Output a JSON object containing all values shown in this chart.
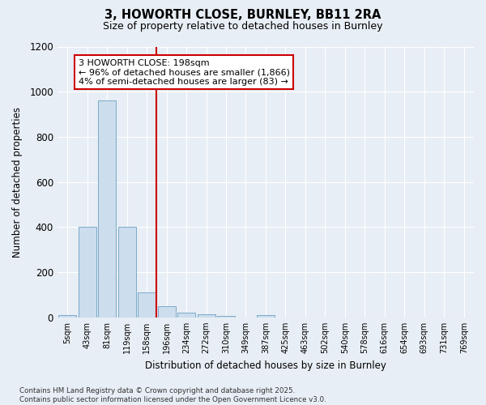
{
  "title_line1": "3, HOWORTH CLOSE, BURNLEY, BB11 2RA",
  "title_line2": "Size of property relative to detached houses in Burnley",
  "xlabel": "Distribution of detached houses by size in Burnley",
  "ylabel": "Number of detached properties",
  "bar_labels": [
    "5sqm",
    "43sqm",
    "81sqm",
    "119sqm",
    "158sqm",
    "196sqm",
    "234sqm",
    "272sqm",
    "310sqm",
    "349sqm",
    "387sqm",
    "425sqm",
    "463sqm",
    "502sqm",
    "540sqm",
    "578sqm",
    "616sqm",
    "654sqm",
    "693sqm",
    "731sqm",
    "769sqm"
  ],
  "bar_values": [
    10,
    400,
    960,
    400,
    110,
    50,
    22,
    14,
    8,
    0,
    10,
    0,
    0,
    0,
    0,
    0,
    0,
    0,
    0,
    0,
    0
  ],
  "bar_color": "#ccdded",
  "bar_edge_color": "#7aaac8",
  "vline_color": "#cc0000",
  "vline_index": 5,
  "annotation_line1": "3 HOWORTH CLOSE: 198sqm",
  "annotation_line2": "← 96% of detached houses are smaller (1,866)",
  "annotation_line3": "4% of semi-detached houses are larger (83) →",
  "annotation_box_edgecolor": "#cc0000",
  "ylim_max": 1200,
  "yticks": [
    0,
    200,
    400,
    600,
    800,
    1000,
    1200
  ],
  "bg_color": "#e8eef5",
  "grid_color": "#ffffff",
  "footer_text": "Contains HM Land Registry data © Crown copyright and database right 2025.\nContains public sector information licensed under the Open Government Licence v3.0."
}
